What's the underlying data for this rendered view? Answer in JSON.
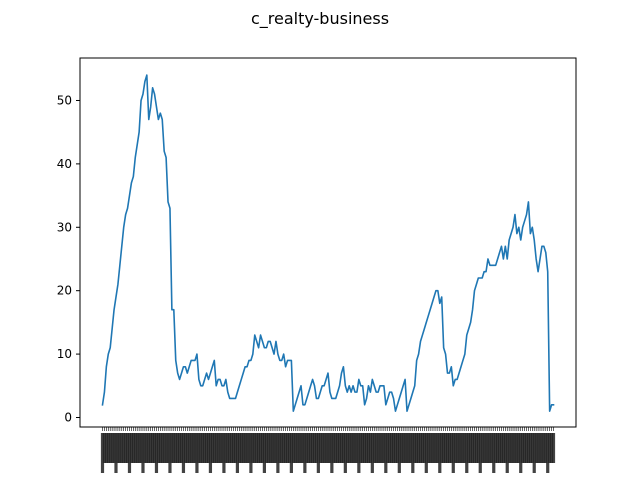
{
  "chart_data": {
    "type": "line",
    "title": "c_realty-business",
    "xlabel": "",
    "ylabel": "",
    "ylim": [
      -1.5,
      56.7
    ],
    "yticks": [
      0,
      10,
      20,
      30,
      40,
      50
    ],
    "grid": false,
    "x_tick_labels_note": "dense rotated date labels, illegible",
    "series": [
      {
        "color": "#1f77b4",
        "values": [
          2,
          4,
          8,
          10,
          11,
          14,
          17,
          19,
          21,
          24,
          27,
          30,
          32,
          33,
          35,
          37,
          38,
          41,
          43,
          45,
          50,
          51,
          53,
          54,
          47,
          49,
          52,
          51,
          49,
          47,
          48,
          47,
          42,
          41,
          34,
          33,
          17,
          17,
          9,
          7,
          6,
          7,
          8,
          8,
          7,
          8,
          9,
          9,
          9,
          10,
          6,
          5,
          5,
          6,
          7,
          6,
          7,
          8,
          9,
          5,
          6,
          6,
          5,
          5,
          6,
          4,
          3,
          3,
          3,
          3,
          4,
          5,
          6,
          7,
          8,
          8,
          9,
          9,
          10,
          13,
          12,
          11,
          13,
          12,
          11,
          11,
          12,
          12,
          11,
          10,
          12,
          10,
          9,
          9,
          10,
          8,
          9,
          9,
          9,
          1,
          2,
          3,
          4,
          5,
          2,
          2,
          3,
          4,
          5,
          6,
          5,
          3,
          3,
          4,
          5,
          5,
          6,
          7,
          4,
          3,
          3,
          3,
          4,
          5,
          7,
          8,
          5,
          4,
          5,
          4,
          5,
          4,
          4,
          6,
          5,
          5,
          2,
          3,
          5,
          4,
          6,
          5,
          4,
          4,
          5,
          5,
          5,
          2,
          3,
          4,
          4,
          3,
          1,
          2,
          3,
          4,
          5,
          6,
          1,
          2,
          3,
          4,
          5,
          9,
          10,
          12,
          13,
          14,
          15,
          16,
          17,
          18,
          19,
          20,
          20,
          18,
          19,
          11,
          10,
          7,
          7,
          8,
          5,
          6,
          6,
          7,
          8,
          9,
          10,
          13,
          14,
          15,
          17,
          20,
          21,
          22,
          22,
          22,
          23,
          23,
          25,
          24,
          24,
          24,
          24,
          25,
          26,
          27,
          25,
          27,
          25,
          28,
          29,
          30,
          32,
          29,
          30,
          28,
          30,
          31,
          32,
          34,
          29,
          30,
          28,
          25,
          23,
          25,
          27,
          27,
          26,
          23,
          1,
          2,
          2
        ]
      }
    ]
  }
}
